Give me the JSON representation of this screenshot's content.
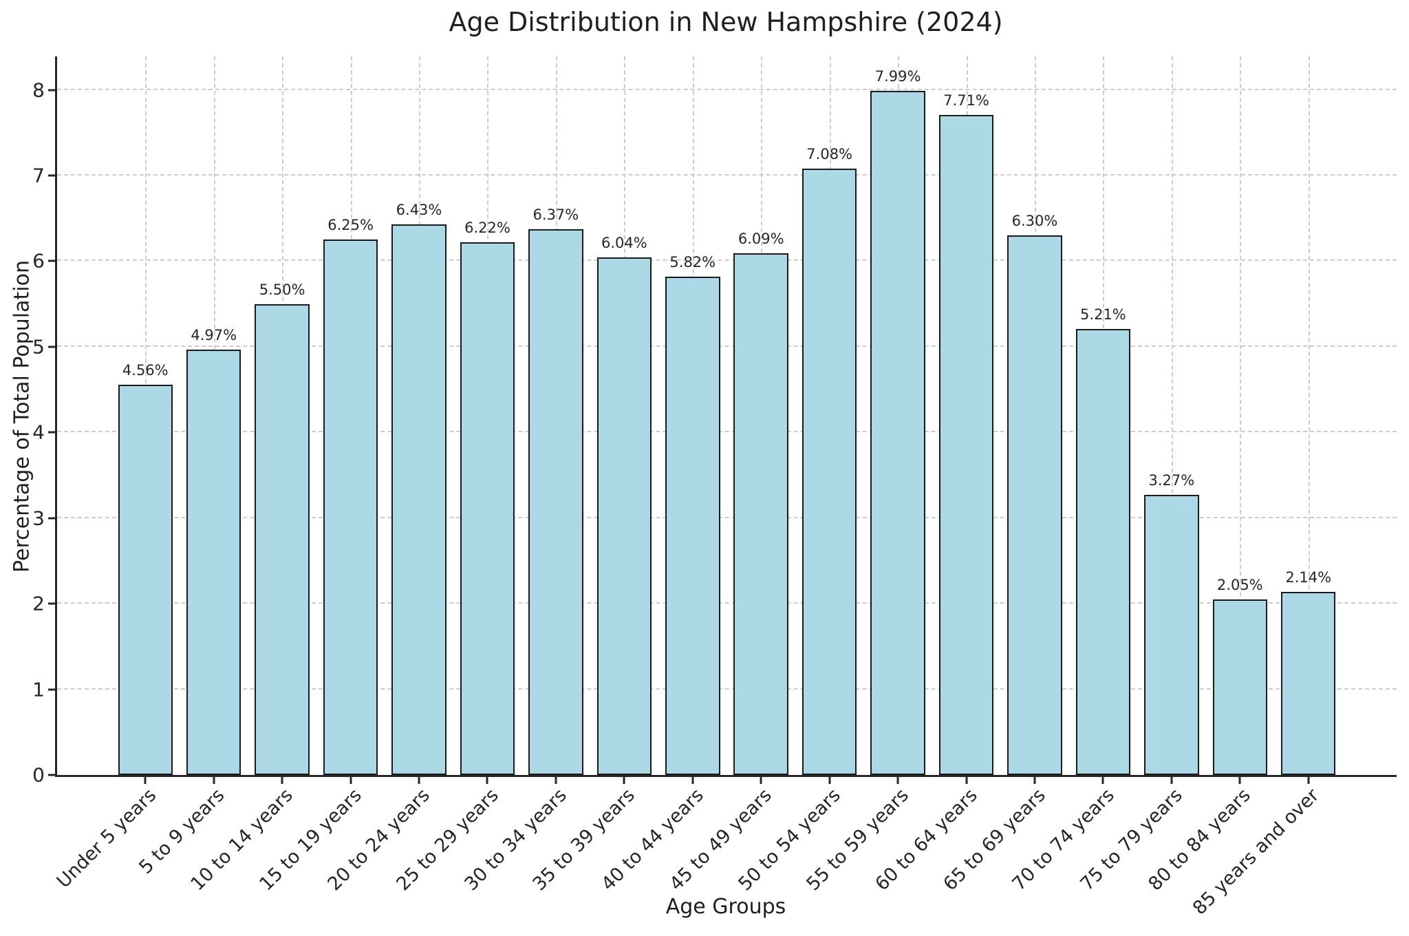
{
  "chart_data": {
    "type": "bar",
    "title": "Age Distribution in New Hampshire (2024)",
    "xlabel": "Age Groups",
    "ylabel": "Percentage of Total Population",
    "categories": [
      "Under 5 years",
      "5 to 9 years",
      "10 to 14 years",
      "15 to 19 years",
      "20 to 24 years",
      "25 to 29 years",
      "30 to 34 years",
      "35 to 39 years",
      "40 to 44 years",
      "45 to 49 years",
      "50 to 54 years",
      "55 to 59 years",
      "60 to 64 years",
      "65 to 69 years",
      "70 to 74 years",
      "75 to 79 years",
      "80 to 84 years",
      "85 years and over"
    ],
    "values": [
      4.56,
      4.97,
      5.5,
      6.25,
      6.43,
      6.22,
      6.37,
      6.04,
      5.82,
      6.09,
      7.08,
      7.99,
      7.71,
      6.3,
      5.21,
      3.27,
      2.05,
      2.14
    ],
    "bar_labels": [
      "4.56%",
      "4.97%",
      "5.50%",
      "6.25%",
      "6.43%",
      "6.22%",
      "6.37%",
      "6.04%",
      "5.82%",
      "6.09%",
      "7.08%",
      "7.99%",
      "7.71%",
      "6.30%",
      "5.21%",
      "3.27%",
      "2.05%",
      "2.14%"
    ],
    "yticks": [
      0,
      1,
      2,
      3,
      4,
      5,
      6,
      7,
      8
    ],
    "ylim": [
      0,
      8.39
    ],
    "xlim": [
      -1.29,
      18.29
    ],
    "bar_width_units": 0.8,
    "grid": "both-dashed",
    "legend": "none",
    "colors": {
      "bar_fill": "#ADD8E6",
      "bar_edge": "#1a1a1a",
      "grid": "#cccccc",
      "text": "#262626",
      "spine": "#262626",
      "background": "#ffffff"
    }
  }
}
